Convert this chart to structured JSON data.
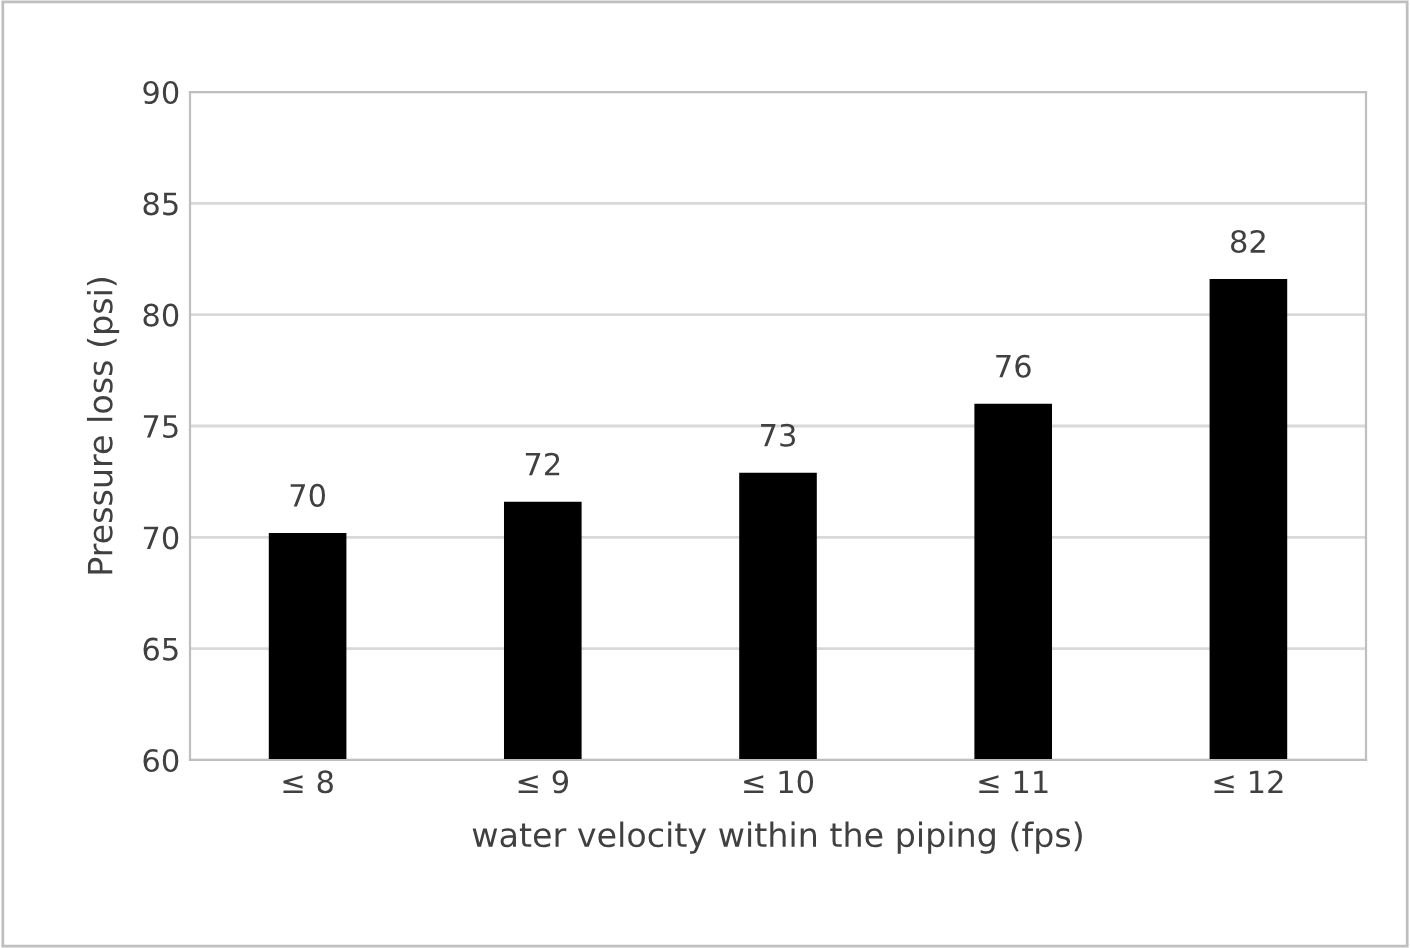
{
  "chart_data": {
    "type": "bar",
    "xlabel": "water velocity within the piping (fps)",
    "ylabel": "Pressure loss (psi)",
    "categories": [
      "≤ 8",
      "≤ 9",
      "≤ 10",
      "≤ 11",
      "≤ 12"
    ],
    "values": [
      70.2,
      71.6,
      72.9,
      76.0,
      81.6
    ],
    "value_labels": [
      "70",
      "72",
      "73",
      "76",
      "82"
    ],
    "color": "#000000",
    "ylim": [
      60,
      90
    ],
    "yticks": [
      60,
      65,
      70,
      75,
      80,
      85,
      90
    ],
    "grid": "y"
  }
}
